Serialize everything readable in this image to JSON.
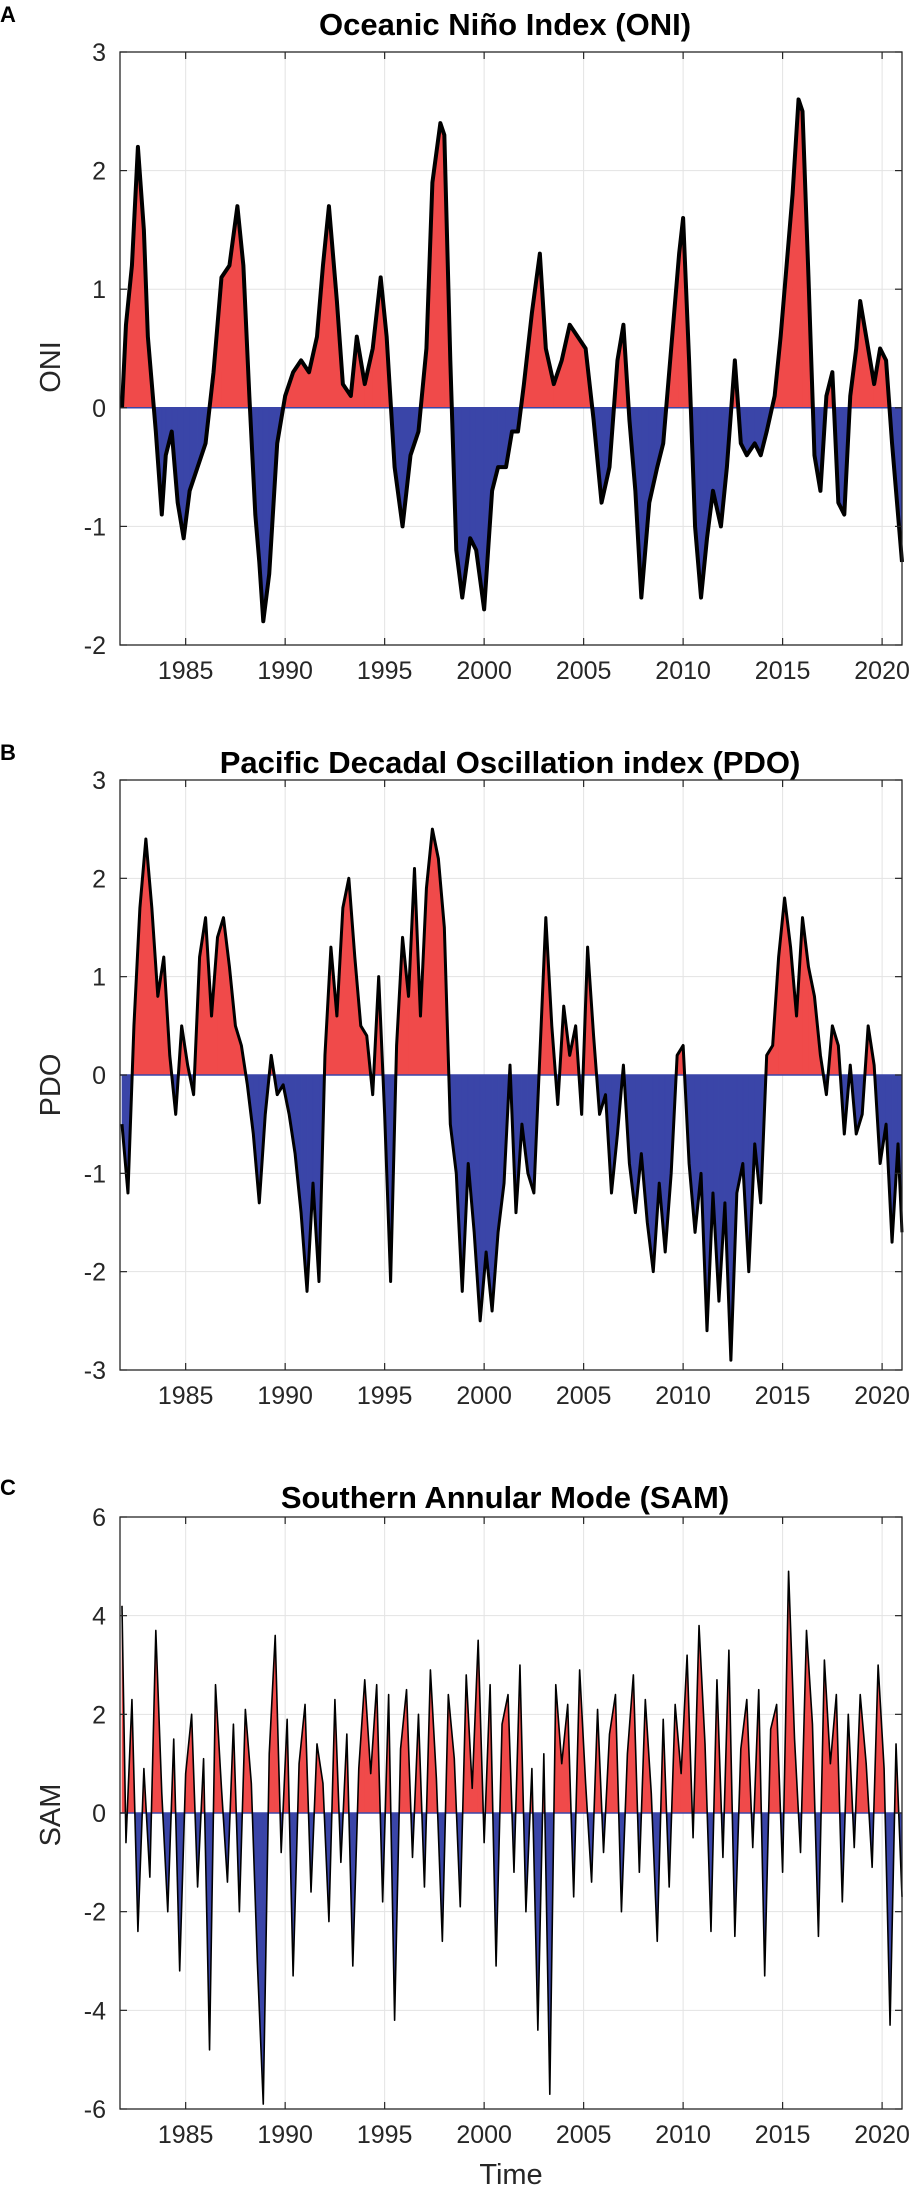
{
  "chart_data": [
    {
      "type": "area",
      "panel_label": "A",
      "title": "Oceanic Niño Index (ONI)",
      "ylabel": "ONI",
      "xlabel": "",
      "xlim": [
        1981.7,
        2021.0
      ],
      "ylim": [
        -2,
        3
      ],
      "yticks": [
        -2,
        -1,
        0,
        1,
        2,
        3
      ],
      "xticks": [
        1985,
        1990,
        1995,
        2000,
        2005,
        2010,
        2015,
        2020
      ],
      "grid": true,
      "colors": {
        "positive": "#f04a4a",
        "negative": "#3a45a8",
        "line": "#000000"
      },
      "x": [
        1981.8,
        1982.0,
        1982.3,
        1982.6,
        1982.9,
        1983.1,
        1983.5,
        1983.8,
        1984.0,
        1984.3,
        1984.6,
        1984.9,
        1985.2,
        1985.6,
        1986.0,
        1986.4,
        1986.8,
        1987.2,
        1987.6,
        1987.9,
        1988.2,
        1988.5,
        1988.7,
        1988.9,
        1989.2,
        1989.6,
        1990.0,
        1990.4,
        1990.8,
        1991.2,
        1991.6,
        1991.9,
        1992.2,
        1992.6,
        1992.9,
        1993.3,
        1993.6,
        1994.0,
        1994.4,
        1994.8,
        1995.1,
        1995.5,
        1995.9,
        1996.3,
        1996.7,
        1997.1,
        1997.4,
        1997.8,
        1998.0,
        1998.3,
        1998.6,
        1998.9,
        1999.3,
        1999.6,
        2000.0,
        2000.4,
        2000.7,
        2001.1,
        2001.4,
        2001.7,
        2002.0,
        2002.4,
        2002.8,
        2003.1,
        2003.5,
        2003.9,
        2004.3,
        2004.7,
        2005.1,
        2005.5,
        2005.9,
        2006.3,
        2006.7,
        2007.0,
        2007.3,
        2007.6,
        2007.9,
        2008.3,
        2008.7,
        2009.0,
        2009.4,
        2009.8,
        2010.0,
        2010.3,
        2010.6,
        2010.9,
        2011.2,
        2011.5,
        2011.9,
        2012.2,
        2012.6,
        2012.9,
        2013.2,
        2013.6,
        2013.9,
        2014.2,
        2014.6,
        2014.9,
        2015.2,
        2015.5,
        2015.8,
        2016.0,
        2016.3,
        2016.6,
        2016.9,
        2017.2,
        2017.5,
        2017.8,
        2018.1,
        2018.4,
        2018.7,
        2018.9,
        2019.2,
        2019.6,
        2019.9,
        2020.2,
        2020.5,
        2020.8,
        2021.0
      ],
      "values": [
        0.0,
        0.7,
        1.2,
        2.2,
        1.5,
        0.6,
        -0.2,
        -0.9,
        -0.4,
        -0.2,
        -0.8,
        -1.1,
        -0.7,
        -0.5,
        -0.3,
        0.3,
        1.1,
        1.2,
        1.7,
        1.2,
        0.1,
        -0.9,
        -1.3,
        -1.8,
        -1.4,
        -0.3,
        0.1,
        0.3,
        0.4,
        0.3,
        0.6,
        1.2,
        1.7,
        0.9,
        0.2,
        0.1,
        0.6,
        0.2,
        0.5,
        1.1,
        0.6,
        -0.5,
        -1.0,
        -0.4,
        -0.2,
        0.5,
        1.9,
        2.4,
        2.3,
        0.4,
        -1.2,
        -1.6,
        -1.1,
        -1.2,
        -1.7,
        -0.7,
        -0.5,
        -0.5,
        -0.2,
        -0.2,
        0.2,
        0.8,
        1.3,
        0.5,
        0.2,
        0.4,
        0.7,
        0.6,
        0.5,
        -0.1,
        -0.8,
        -0.5,
        0.4,
        0.7,
        -0.1,
        -0.7,
        -1.6,
        -0.8,
        -0.5,
        -0.3,
        0.5,
        1.3,
        1.6,
        0.4,
        -1.0,
        -1.6,
        -1.1,
        -0.7,
        -1.0,
        -0.5,
        0.4,
        -0.3,
        -0.4,
        -0.3,
        -0.4,
        -0.2,
        0.1,
        0.6,
        1.2,
        1.8,
        2.6,
        2.5,
        1.1,
        -0.4,
        -0.7,
        0.1,
        0.3,
        -0.8,
        -0.9,
        0.1,
        0.5,
        0.9,
        0.6,
        0.2,
        0.5,
        0.4,
        -0.3,
        -0.9,
        -1.3
      ]
    },
    {
      "type": "area",
      "panel_label": "B",
      "title": "Pacific Decadal Oscillation index (PDO)",
      "ylabel": "PDO",
      "xlabel": "",
      "xlim": [
        1981.7,
        2021.0
      ],
      "ylim": [
        -3,
        3
      ],
      "yticks": [
        -3,
        -2,
        -1,
        0,
        1,
        2,
        3
      ],
      "xticks": [
        1985,
        1990,
        1995,
        2000,
        2005,
        2010,
        2015,
        2020
      ],
      "grid": true,
      "colors": {
        "positive": "#f04a4a",
        "negative": "#3a45a8",
        "line": "#000000"
      },
      "x": [
        1981.8,
        1982.1,
        1982.4,
        1982.7,
        1983.0,
        1983.3,
        1983.6,
        1983.9,
        1984.2,
        1984.5,
        1984.8,
        1985.1,
        1985.4,
        1985.7,
        1986.0,
        1986.3,
        1986.6,
        1986.9,
        1987.2,
        1987.5,
        1987.8,
        1988.1,
        1988.4,
        1988.7,
        1989.0,
        1989.3,
        1989.6,
        1989.9,
        1990.2,
        1990.5,
        1990.8,
        1991.1,
        1991.4,
        1991.7,
        1992.0,
        1992.3,
        1992.6,
        1992.9,
        1993.2,
        1993.5,
        1993.8,
        1994.1,
        1994.4,
        1994.7,
        1995.0,
        1995.3,
        1995.6,
        1995.9,
        1996.2,
        1996.5,
        1996.8,
        1997.1,
        1997.4,
        1997.7,
        1998.0,
        1998.3,
        1998.6,
        1998.9,
        1999.2,
        1999.5,
        1999.8,
        2000.1,
        2000.4,
        2000.7,
        2001.0,
        2001.3,
        2001.6,
        2001.9,
        2002.2,
        2002.5,
        2002.8,
        2003.1,
        2003.4,
        2003.7,
        2004.0,
        2004.3,
        2004.6,
        2004.9,
        2005.2,
        2005.5,
        2005.8,
        2006.1,
        2006.4,
        2006.7,
        2007.0,
        2007.3,
        2007.6,
        2007.9,
        2008.2,
        2008.5,
        2008.8,
        2009.1,
        2009.4,
        2009.7,
        2010.0,
        2010.3,
        2010.6,
        2010.9,
        2011.2,
        2011.5,
        2011.8,
        2012.1,
        2012.4,
        2012.7,
        2013.0,
        2013.3,
        2013.6,
        2013.9,
        2014.2,
        2014.5,
        2014.8,
        2015.1,
        2015.4,
        2015.7,
        2016.0,
        2016.3,
        2016.6,
        2016.9,
        2017.2,
        2017.5,
        2017.8,
        2018.1,
        2018.4,
        2018.7,
        2019.0,
        2019.3,
        2019.6,
        2019.9,
        2020.2,
        2020.5,
        2020.8,
        2021.0
      ],
      "values": [
        -0.5,
        -1.2,
        0.5,
        1.7,
        2.4,
        1.7,
        0.8,
        1.2,
        0.2,
        -0.4,
        0.5,
        0.1,
        -0.2,
        1.2,
        1.6,
        0.6,
        1.4,
        1.6,
        1.1,
        0.5,
        0.3,
        -0.1,
        -0.6,
        -1.3,
        -0.4,
        0.2,
        -0.2,
        -0.1,
        -0.4,
        -0.8,
        -1.4,
        -2.2,
        -1.1,
        -2.1,
        0.2,
        1.3,
        0.6,
        1.7,
        2.0,
        1.2,
        0.5,
        0.4,
        -0.2,
        1.0,
        -0.4,
        -2.1,
        0.3,
        1.4,
        0.8,
        2.1,
        0.6,
        1.9,
        2.5,
        2.2,
        1.5,
        -0.5,
        -1.0,
        -2.2,
        -0.9,
        -1.6,
        -2.5,
        -1.8,
        -2.4,
        -1.6,
        -1.1,
        0.1,
        -1.4,
        -0.5,
        -1.0,
        -1.2,
        0.2,
        1.6,
        0.5,
        -0.3,
        0.7,
        0.2,
        0.5,
        -0.4,
        1.3,
        0.4,
        -0.4,
        -0.2,
        -1.2,
        -0.6,
        0.1,
        -0.9,
        -1.4,
        -0.8,
        -1.5,
        -2.0,
        -1.1,
        -1.8,
        -1.0,
        0.2,
        0.3,
        -0.9,
        -1.6,
        -1.0,
        -2.6,
        -1.2,
        -2.3,
        -1.3,
        -2.9,
        -1.2,
        -0.9,
        -2.0,
        -0.7,
        -1.3,
        0.2,
        0.3,
        1.2,
        1.8,
        1.3,
        0.6,
        1.6,
        1.1,
        0.8,
        0.2,
        -0.2,
        0.5,
        0.3,
        -0.6,
        0.1,
        -0.6,
        -0.4,
        0.5,
        0.1,
        -0.9,
        -0.5,
        -1.7,
        -0.7,
        -1.6
      ]
    },
    {
      "type": "area",
      "panel_label": "C",
      "title": "Southern Annular Mode (SAM)",
      "ylabel": "SAM",
      "xlabel": "Time",
      "xlim": [
        1981.7,
        2021.0
      ],
      "ylim": [
        -6,
        6
      ],
      "yticks": [
        -6,
        -4,
        -2,
        0,
        2,
        4,
        6
      ],
      "xticks": [
        1985,
        1990,
        1995,
        2000,
        2005,
        2010,
        2015,
        2020
      ],
      "grid": true,
      "colors": {
        "positive": "#f04a4a",
        "negative": "#3a45a8",
        "line": "#000000"
      },
      "x": [
        1981.8,
        1982.0,
        1982.3,
        1982.6,
        1982.9,
        1983.2,
        1983.5,
        1983.8,
        1984.1,
        1984.4,
        1984.7,
        1985.0,
        1985.3,
        1985.6,
        1985.9,
        1986.2,
        1986.5,
        1986.8,
        1987.1,
        1987.4,
        1987.7,
        1988.0,
        1988.3,
        1988.6,
        1988.9,
        1989.2,
        1989.5,
        1989.8,
        1990.1,
        1990.4,
        1990.7,
        1991.0,
        1991.3,
        1991.6,
        1991.9,
        1992.2,
        1992.5,
        1992.8,
        1993.1,
        1993.4,
        1993.7,
        1994.0,
        1994.3,
        1994.6,
        1994.9,
        1995.2,
        1995.5,
        1995.8,
        1996.1,
        1996.4,
        1996.7,
        1997.0,
        1997.3,
        1997.6,
        1997.9,
        1998.2,
        1998.5,
        1998.8,
        1999.1,
        1999.4,
        1999.7,
        2000.0,
        2000.3,
        2000.6,
        2000.9,
        2001.2,
        2001.5,
        2001.8,
        2002.1,
        2002.4,
        2002.7,
        2003.0,
        2003.3,
        2003.6,
        2003.9,
        2004.2,
        2004.5,
        2004.8,
        2005.1,
        2005.4,
        2005.7,
        2006.0,
        2006.3,
        2006.6,
        2006.9,
        2007.2,
        2007.5,
        2007.8,
        2008.1,
        2008.4,
        2008.7,
        2009.0,
        2009.3,
        2009.6,
        2009.9,
        2010.2,
        2010.5,
        2010.8,
        2011.1,
        2011.4,
        2011.7,
        2012.0,
        2012.3,
        2012.6,
        2012.9,
        2013.2,
        2013.5,
        2013.8,
        2014.1,
        2014.4,
        2014.7,
        2015.0,
        2015.3,
        2015.6,
        2015.9,
        2016.2,
        2016.5,
        2016.8,
        2017.1,
        2017.4,
        2017.7,
        2018.0,
        2018.3,
        2018.6,
        2018.9,
        2019.2,
        2019.5,
        2019.8,
        2020.1,
        2020.4,
        2020.7,
        2021.0
      ],
      "values": [
        4.2,
        -0.6,
        2.3,
        -2.4,
        0.9,
        -1.3,
        3.7,
        0.4,
        -2.0,
        1.5,
        -3.2,
        0.8,
        2.0,
        -1.5,
        1.1,
        -4.8,
        2.6,
        0.5,
        -1.4,
        1.8,
        -2.0,
        2.1,
        0.6,
        -3.0,
        -5.9,
        1.2,
        3.6,
        -0.8,
        1.9,
        -3.3,
        1.0,
        2.2,
        -1.6,
        1.4,
        0.6,
        -2.2,
        2.3,
        -1.0,
        1.6,
        -3.1,
        0.9,
        2.7,
        0.8,
        2.6,
        -1.8,
        2.4,
        -4.2,
        1.3,
        2.5,
        -0.9,
        2.0,
        -1.5,
        2.9,
        0.7,
        -2.6,
        2.4,
        1.1,
        -1.9,
        2.8,
        0.5,
        3.5,
        -0.6,
        2.6,
        -3.1,
        1.8,
        2.4,
        -1.2,
        3.0,
        -2.0,
        0.9,
        -4.4,
        1.2,
        -5.7,
        2.6,
        1.0,
        2.2,
        -1.7,
        2.9,
        0.6,
        -1.4,
        2.1,
        -0.8,
        1.6,
        2.4,
        -2.0,
        1.2,
        2.8,
        -1.2,
        2.3,
        0.4,
        -2.6,
        1.9,
        -1.5,
        2.2,
        0.8,
        3.2,
        -0.5,
        3.8,
        1.4,
        -2.4,
        2.7,
        -0.9,
        3.3,
        -2.5,
        1.3,
        2.3,
        -0.7,
        2.5,
        -3.3,
        1.7,
        2.2,
        -1.2,
        4.9,
        1.5,
        -0.8,
        3.7,
        1.8,
        -2.5,
        3.1,
        1.0,
        2.4,
        -1.8,
        2.0,
        -0.7,
        2.4,
        1.0,
        -1.1,
        3.0,
        0.9,
        -4.3,
        1.4,
        -1.7
      ]
    }
  ]
}
